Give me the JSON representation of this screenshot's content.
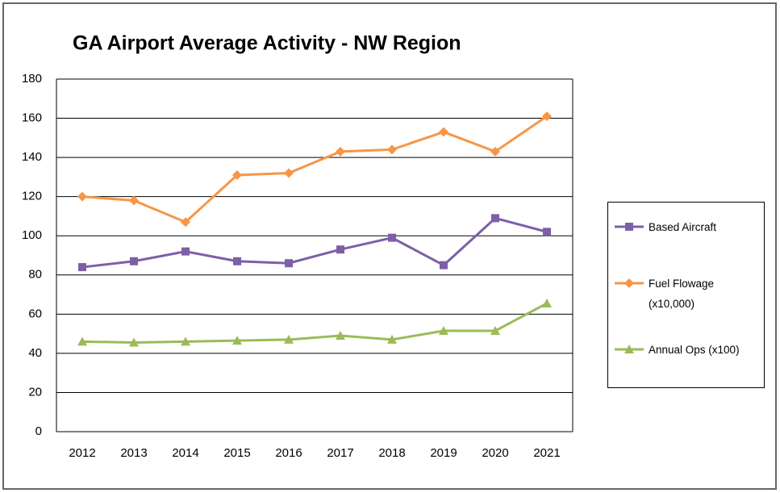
{
  "chart_data": {
    "type": "line",
    "title": "GA Airport Average Activity - NW Region",
    "categories": [
      "2012",
      "2013",
      "2014",
      "2015",
      "2016",
      "2017",
      "2018",
      "2019",
      "2020",
      "2021"
    ],
    "series": [
      {
        "name": "Based Aircraft",
        "color": "#7d5fa8",
        "marker": "square",
        "values": [
          84,
          87,
          92,
          87,
          86,
          93,
          99,
          85,
          109,
          102
        ]
      },
      {
        "name": "Fuel Flowage (x10,000)",
        "color": "#f79646",
        "marker": "diamond",
        "values": [
          120,
          118,
          107,
          131,
          132,
          143,
          144,
          153,
          143,
          161
        ]
      },
      {
        "name": "Annual Ops (x100)",
        "color": "#9bbb59",
        "marker": "triangle",
        "values": [
          46,
          45.5,
          46,
          46.5,
          47,
          49,
          47,
          51.5,
          51.5,
          65.5
        ]
      }
    ],
    "ylim": [
      0,
      180
    ],
    "yticks": [
      0,
      20,
      40,
      60,
      80,
      100,
      120,
      140,
      160,
      180
    ],
    "grid": true,
    "legend": "right"
  }
}
